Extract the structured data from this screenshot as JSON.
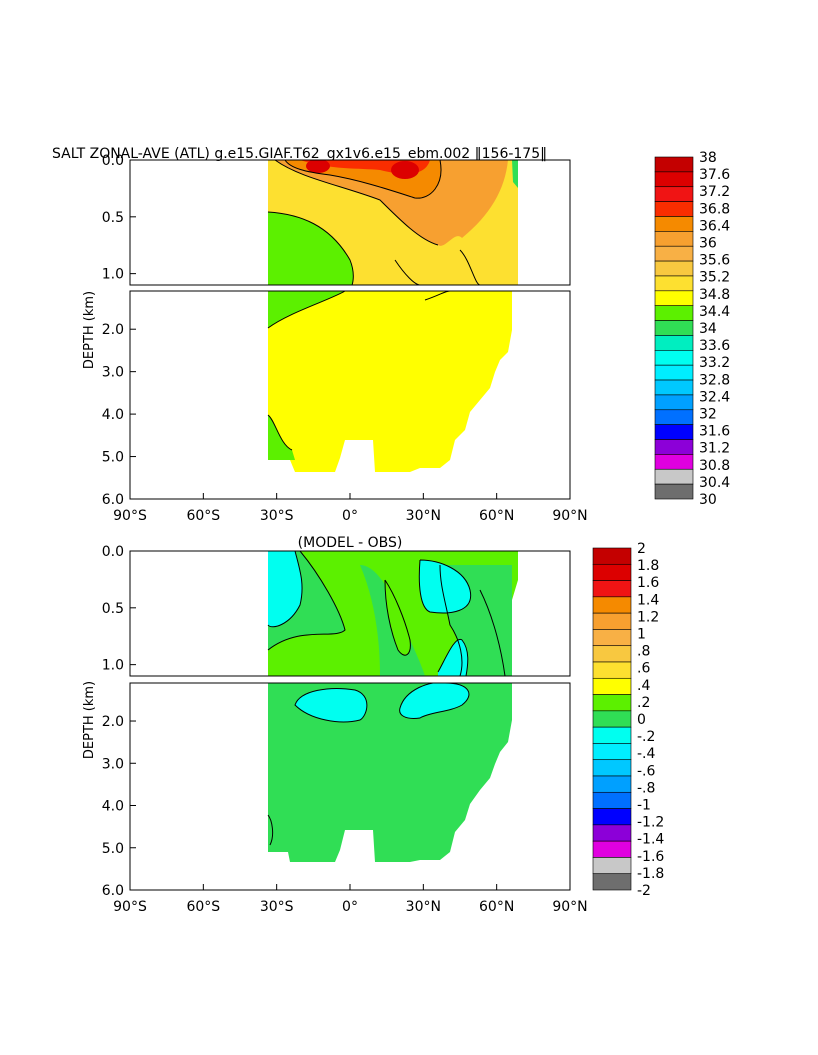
{
  "chart_data": [
    {
      "type": "heatmap",
      "title": "SALT ZONAL-AVE (ATL) g.e15.GIAF.T62_gx1v6.e15_ebm.002 ‖156-175‖",
      "ylabel": "DEPTH (km)",
      "x_ticks": [
        "90°S",
        "60°S",
        "30°S",
        "0°",
        "30°N",
        "60°N",
        "90°N"
      ],
      "x_values": [
        -90,
        -60,
        -30,
        0,
        30,
        60,
        90
      ],
      "xlim": [
        -90,
        90
      ],
      "upper_panel_ylim": [
        0,
        1.1
      ],
      "upper_y_ticks": [
        "0.0",
        "0.5",
        "1.0"
      ],
      "upper_y_values": [
        0,
        0.5,
        1.0
      ],
      "lower_panel_ylim": [
        1.1,
        6.0
      ],
      "lower_y_ticks": [
        "2.0",
        "3.0",
        "4.0",
        "5.0",
        "6.0"
      ],
      "lower_y_values": [
        2,
        3,
        4,
        5,
        6
      ],
      "colorbar_labels": [
        "38",
        "37.6",
        "37.2",
        "36.8",
        "36.4",
        "36",
        "35.6",
        "35.2",
        "34.8",
        "34.4",
        "34",
        "33.6",
        "33.2",
        "32.8",
        "32.4",
        "32",
        "31.6",
        "31.2",
        "30.8",
        "30.4",
        "30"
      ],
      "colorbar_levels": [
        38,
        37.6,
        37.2,
        36.8,
        36.4,
        36,
        35.6,
        35.2,
        34.8,
        34.4,
        34,
        33.6,
        33.2,
        32.8,
        32.4,
        32,
        31.6,
        31.2,
        30.8,
        30.4,
        30
      ],
      "colorbar_colors": [
        "#c40000",
        "#dc0000",
        "#f01414",
        "#fa2d00",
        "#f58a00",
        "#f7a030",
        "#f8b045",
        "#f8c840",
        "#fde030",
        "#ffff00",
        "#5cf000",
        "#30de55",
        "#00eec0",
        "#00fff0",
        "#00eeff",
        "#00c8ff",
        "#00a0ff",
        "#0070ff",
        "#0000ff",
        "#8c00d8",
        "#e000e0",
        "#c8c8c8",
        "#6e6e6e"
      ]
    },
    {
      "type": "heatmap",
      "title": "(MODEL - OBS)",
      "ylabel": "DEPTH (km)",
      "x_ticks": [
        "90°S",
        "60°S",
        "30°S",
        "0°",
        "30°N",
        "60°N",
        "90°N"
      ],
      "x_values": [
        -90,
        -60,
        -30,
        0,
        30,
        60,
        90
      ],
      "xlim": [
        -90,
        90
      ],
      "upper_panel_ylim": [
        0,
        1.1
      ],
      "upper_y_ticks": [
        "0.0",
        "0.5",
        "1.0"
      ],
      "upper_y_values": [
        0,
        0.5,
        1.0
      ],
      "lower_panel_ylim": [
        1.1,
        6.0
      ],
      "lower_y_ticks": [
        "2.0",
        "3.0",
        "4.0",
        "5.0",
        "6.0"
      ],
      "lower_y_values": [
        2,
        3,
        4,
        5,
        6
      ],
      "colorbar_labels": [
        "2",
        "1.8",
        "1.6",
        "1.4",
        "1.2",
        "1",
        ".8",
        ".6",
        ".4",
        ".2",
        "0",
        "-.2",
        "-.4",
        "-.6",
        "-.8",
        "-1",
        "-1.2",
        "-1.4",
        "-1.6",
        "-1.8",
        "-2"
      ],
      "colorbar_levels": [
        2,
        1.8,
        1.6,
        1.4,
        1.2,
        1,
        0.8,
        0.6,
        0.4,
        0.2,
        0,
        -0.2,
        -0.4,
        -0.6,
        -0.8,
        -1,
        -1.2,
        -1.4,
        -1.6,
        -1.8,
        -2
      ],
      "colorbar_colors": [
        "#c40000",
        "#dc0000",
        "#f01414",
        "#f58a00",
        "#f7a030",
        "#f8b045",
        "#f8c840",
        "#fde030",
        "#ffff00",
        "#5cf000",
        "#30de55",
        "#00fff0",
        "#00eeff",
        "#00c8ff",
        "#00a0ff",
        "#0070ff",
        "#0000ff",
        "#8c00d8",
        "#e000e0",
        "#c8c8c8",
        "#6e6e6e"
      ]
    }
  ]
}
